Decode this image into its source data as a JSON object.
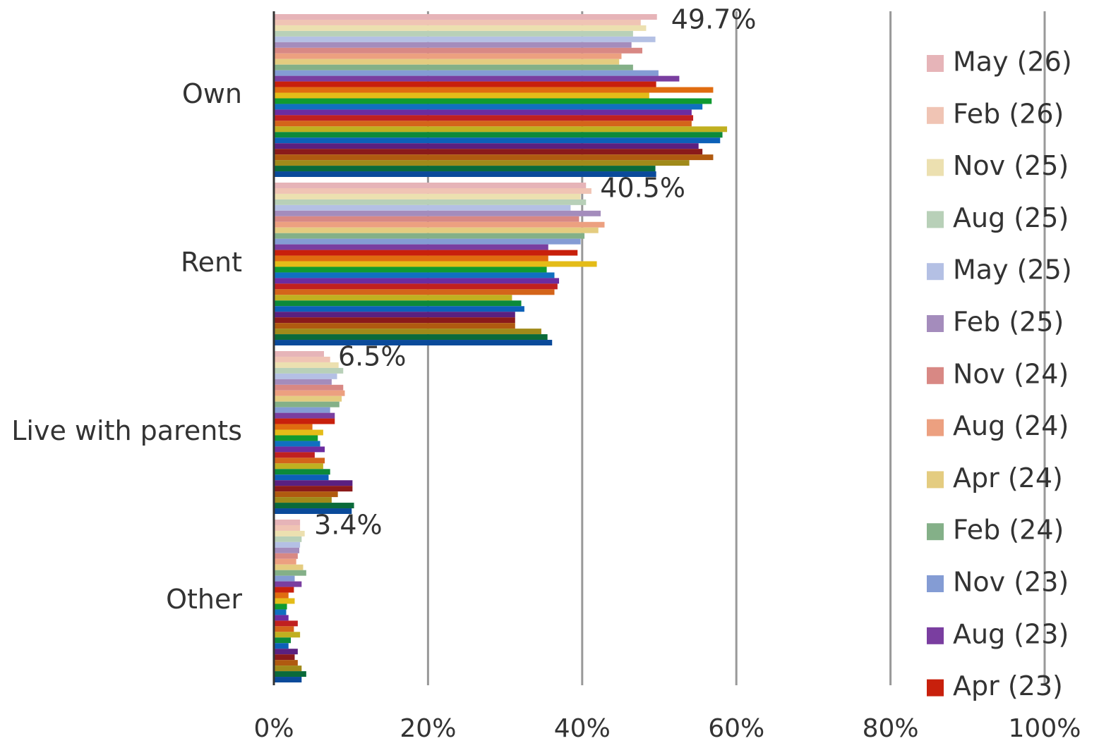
{
  "chart_data": {
    "type": "hbar",
    "categories": [
      "Own",
      "Rent",
      "Live with parents",
      "Other"
    ],
    "xlim": [
      0,
      100
    ],
    "xticks": [
      {
        "value": 0,
        "label": "0%"
      },
      {
        "value": 20,
        "label": "20%"
      },
      {
        "value": 40,
        "label": "40%"
      },
      {
        "value": 60,
        "label": "60%"
      },
      {
        "value": 80,
        "label": "80%"
      },
      {
        "value": 100,
        "label": "100%"
      }
    ],
    "grid": true,
    "legend": "right",
    "series": [
      {
        "name": "May (26)",
        "color": "#e6b4b8",
        "values": [
          49.7,
          40.5,
          6.5,
          3.4
        ],
        "value_labels": [
          "49.7%",
          "40.5%",
          "6.5%",
          "3.4%"
        ]
      },
      {
        "name": "Feb (26)",
        "color": "#f0c4b4",
        "values": [
          47.6,
          41.2,
          7.3,
          3.4
        ]
      },
      {
        "name": "Nov (25)",
        "color": "#ece0b0",
        "values": [
          48.3,
          39.8,
          8.4,
          4.0
        ]
      },
      {
        "name": "Aug (25)",
        "color": "#b8d0b8",
        "values": [
          46.6,
          40.5,
          9.0,
          3.6
        ]
      },
      {
        "name": "May (25)",
        "color": "#b4c0e4",
        "values": [
          49.5,
          38.5,
          8.2,
          3.4
        ]
      },
      {
        "name": "Feb (25)",
        "color": "#a48cbc",
        "values": [
          46.4,
          42.4,
          7.5,
          3.3
        ]
      },
      {
        "name": "Nov (24)",
        "color": "#d88884",
        "values": [
          47.8,
          39.6,
          9.0,
          3.1
        ]
      },
      {
        "name": "Aug (24)",
        "color": "#eca080",
        "values": [
          45.1,
          42.9,
          9.2,
          2.9
        ]
      },
      {
        "name": "Apr (24)",
        "color": "#e4cc80",
        "values": [
          44.8,
          42.1,
          8.8,
          3.8
        ]
      },
      {
        "name": "Feb (24)",
        "color": "#84b088",
        "values": [
          46.6,
          40.3,
          8.5,
          4.2
        ]
      },
      {
        "name": "Nov (23)",
        "color": "#849cd4",
        "values": [
          49.9,
          39.8,
          7.3,
          2.7
        ]
      },
      {
        "name": "Aug (23)",
        "color": "#7a3ea0",
        "values": [
          52.6,
          35.6,
          7.9,
          3.6
        ]
      },
      {
        "name": "Apr (23)",
        "color": "#c8200c",
        "values": [
          49.6,
          39.4,
          7.9,
          2.6
        ]
      },
      {
        "color": "#e06c10",
        "values": [
          57.0,
          35.6,
          5.0,
          1.9
        ]
      },
      {
        "color": "#e4bc18",
        "values": [
          48.7,
          41.9,
          6.4,
          2.7
        ]
      },
      {
        "color": "#109a30",
        "values": [
          56.8,
          35.4,
          5.7,
          1.7
        ]
      },
      {
        "color": "#1070c0",
        "values": [
          55.6,
          36.4,
          6.0,
          1.6
        ]
      },
      {
        "color": "#6c2ca0",
        "values": [
          54.2,
          37.0,
          6.6,
          1.9
        ]
      },
      {
        "color": "#c02020",
        "values": [
          54.4,
          36.8,
          5.3,
          3.1
        ]
      },
      {
        "color": "#d4641a",
        "values": [
          54.2,
          36.4,
          6.6,
          2.6
        ]
      },
      {
        "color": "#c0b020",
        "values": [
          58.8,
          30.9,
          6.4,
          3.4
        ]
      },
      {
        "color": "#0c8a3a",
        "values": [
          58.2,
          32.1,
          7.3,
          2.2
        ]
      },
      {
        "color": "#0c60b8",
        "values": [
          57.9,
          32.5,
          7.1,
          1.9
        ]
      },
      {
        "color": "#5a2080",
        "values": [
          55.1,
          31.3,
          10.2,
          3.1
        ]
      },
      {
        "color": "#8b1a1a",
        "values": [
          55.6,
          31.3,
          10.2,
          2.7
        ]
      },
      {
        "color": "#b05a10",
        "values": [
          57.0,
          31.3,
          8.3,
          3.1
        ]
      },
      {
        "color": "#a08a1a",
        "values": [
          53.9,
          34.7,
          7.5,
          3.6
        ]
      },
      {
        "color": "#0a6a3a",
        "values": [
          49.5,
          35.5,
          10.4,
          4.2
        ]
      },
      {
        "color": "#0a4a9a",
        "values": [
          49.6,
          36.1,
          10.1,
          3.6
        ]
      }
    ]
  }
}
